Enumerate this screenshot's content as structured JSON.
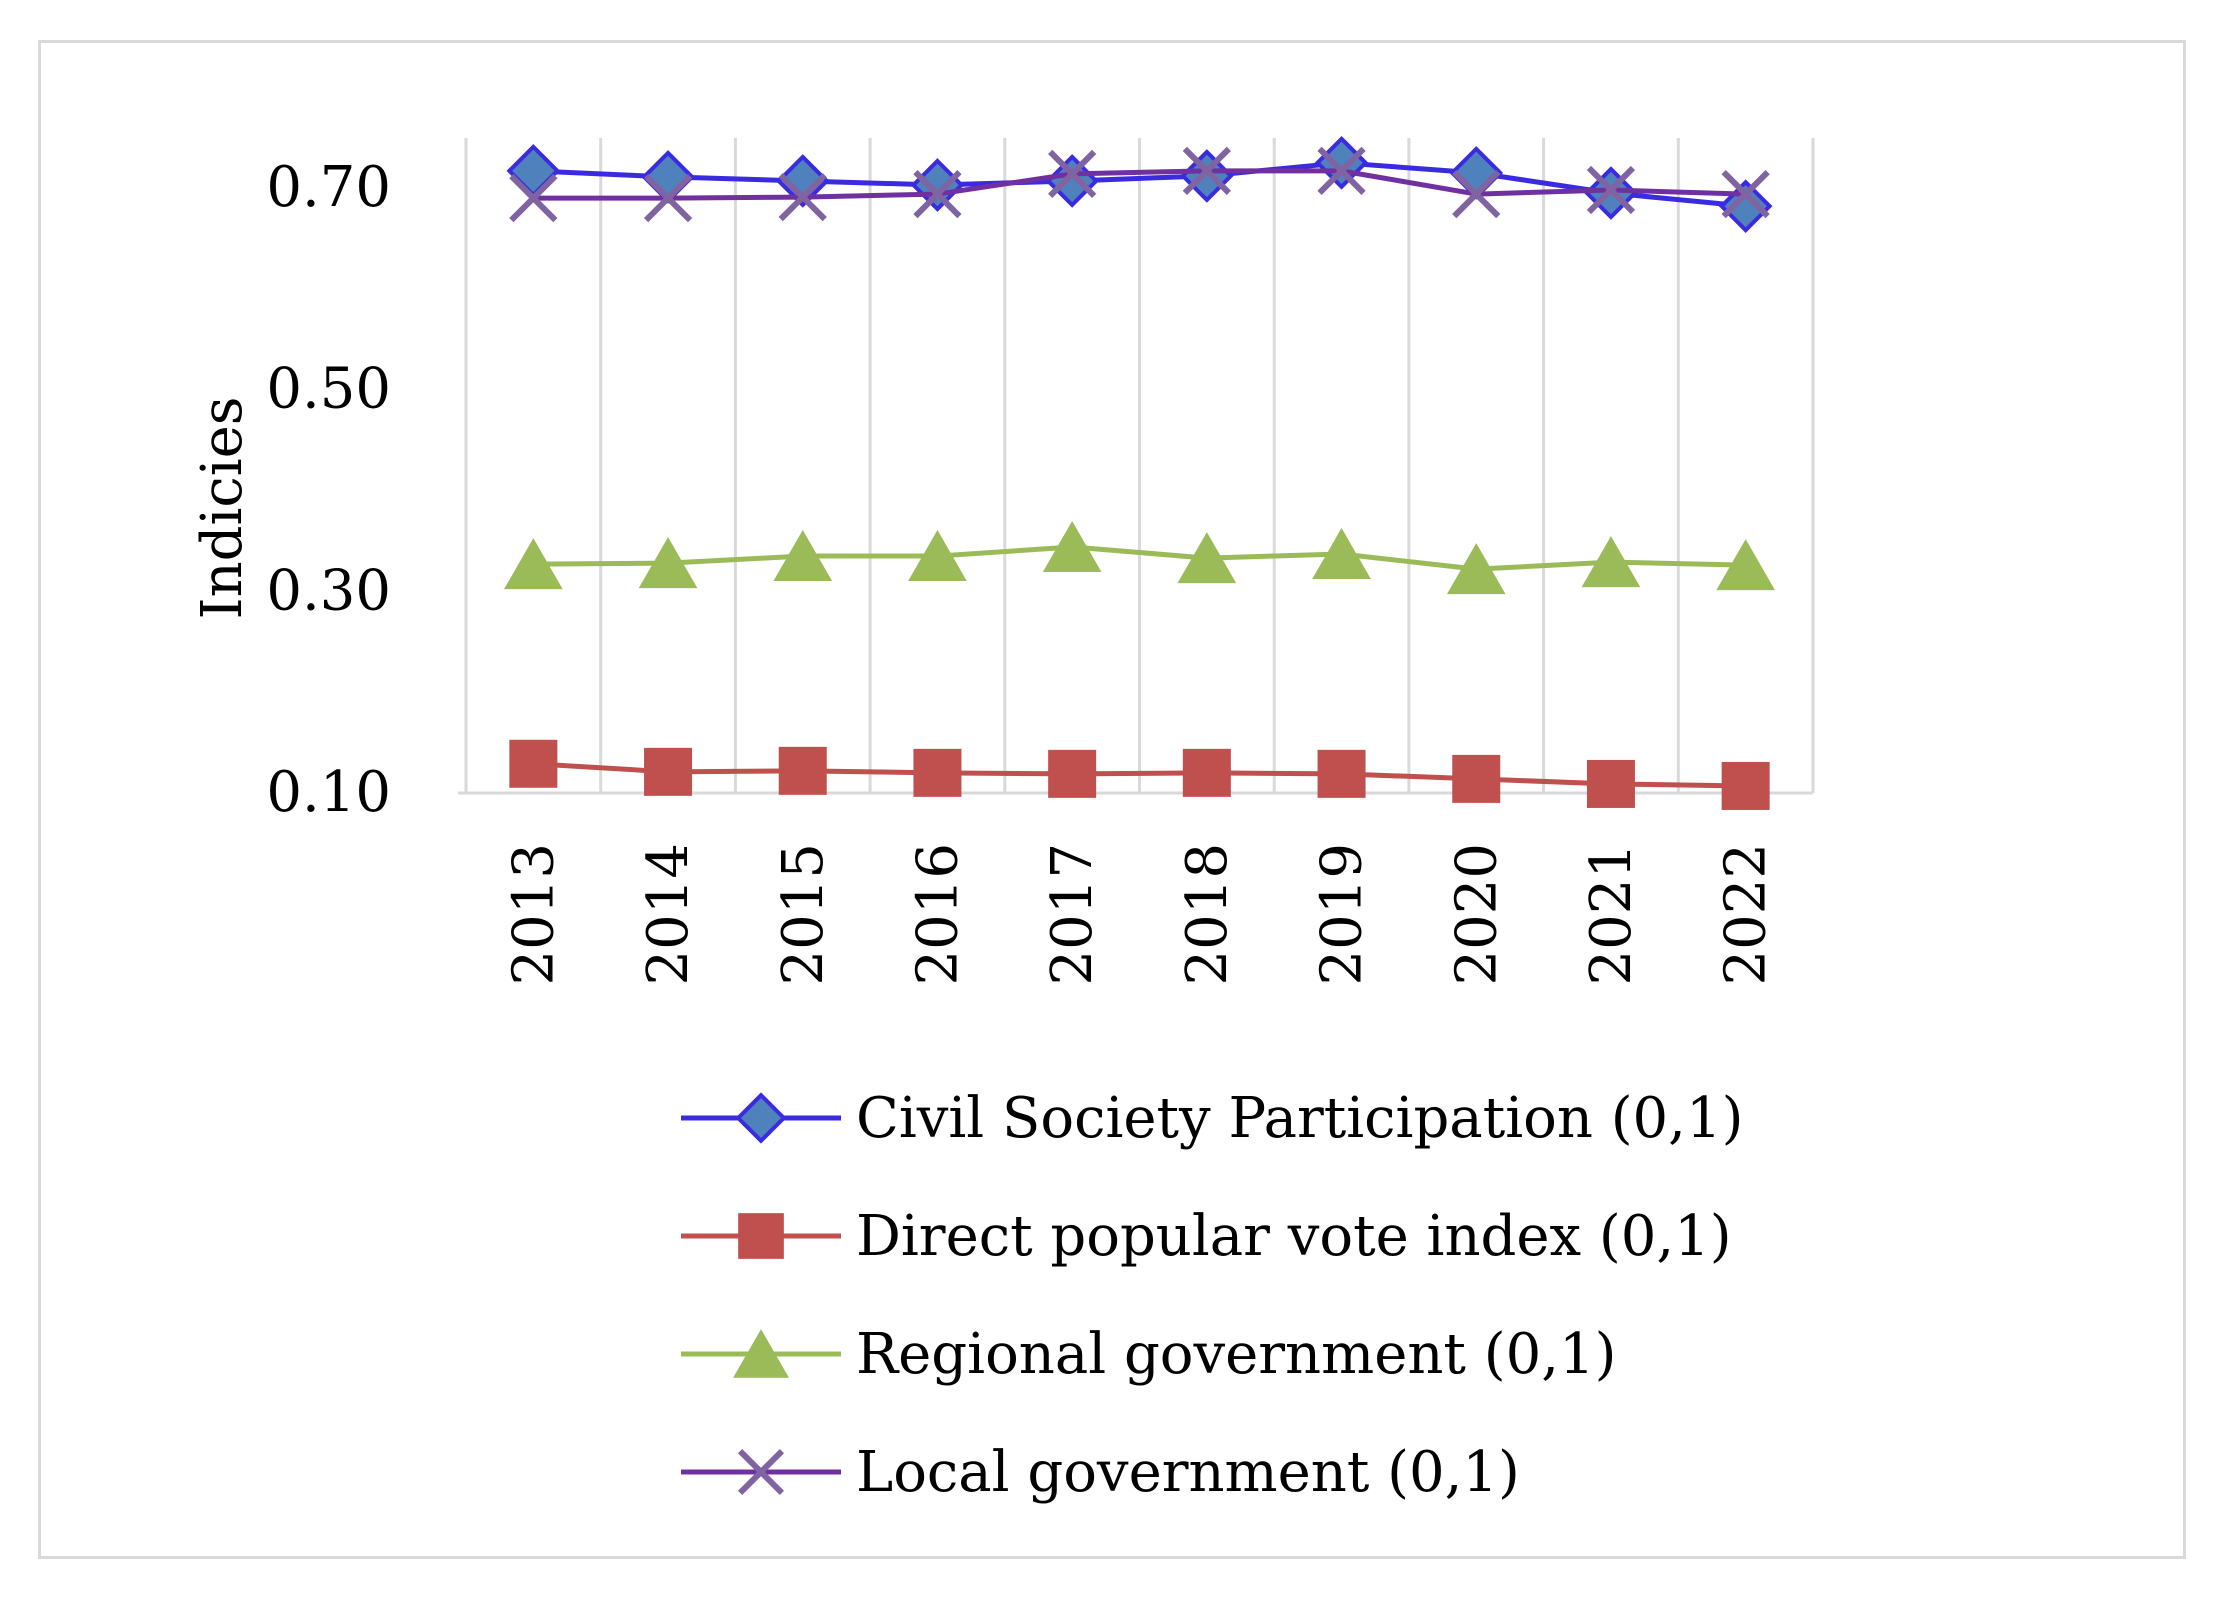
{
  "chart_data": {
    "type": "line",
    "title": "",
    "xlabel": "",
    "ylabel": "Indicies",
    "ylim": [
      0.08,
      0.75
    ],
    "yticks": [
      "0.10",
      "0.30",
      "0.50",
      "0.70"
    ],
    "ytick_values": [
      0.1,
      0.3,
      0.5,
      0.7
    ],
    "grid": "vertical",
    "legend_position": "bottom",
    "categories": [
      "2013",
      "2014",
      "2015",
      "2016",
      "2017",
      "2018",
      "2019",
      "2020",
      "2021",
      "2022"
    ],
    "series": [
      {
        "name": "Civil Society Participation (0,1)",
        "marker": "diamond",
        "line_color": "#3a2be0",
        "marker_fill": "#4f81bd",
        "marker_edge": "#3a2be0",
        "values": [
          0.715,
          0.709,
          0.705,
          0.701,
          0.705,
          0.71,
          0.723,
          0.713,
          0.693,
          0.68
        ]
      },
      {
        "name": "Direct popular vote index (0,1)",
        "marker": "square",
        "line_color": "#c0504d",
        "marker_fill": "#c0504d",
        "marker_edge": "#c0504d",
        "values": [
          0.127,
          0.119,
          0.12,
          0.118,
          0.117,
          0.118,
          0.117,
          0.112,
          0.107,
          0.105
        ]
      },
      {
        "name": "Regional government (0,1)",
        "marker": "triangle",
        "line_color": "#9bbb59",
        "marker_fill": "#9bbb59",
        "marker_edge": "#9bbb59",
        "values": [
          0.325,
          0.326,
          0.333,
          0.333,
          0.342,
          0.331,
          0.335,
          0.32,
          0.327,
          0.324
        ]
      },
      {
        "name": "Local government (0,1)",
        "marker": "x",
        "line_color": "#7030a0",
        "marker_fill": "#8064a2",
        "marker_edge": "#8064a2",
        "values": [
          0.688,
          0.688,
          0.689,
          0.692,
          0.712,
          0.715,
          0.715,
          0.692,
          0.696,
          0.692
        ]
      }
    ]
  }
}
